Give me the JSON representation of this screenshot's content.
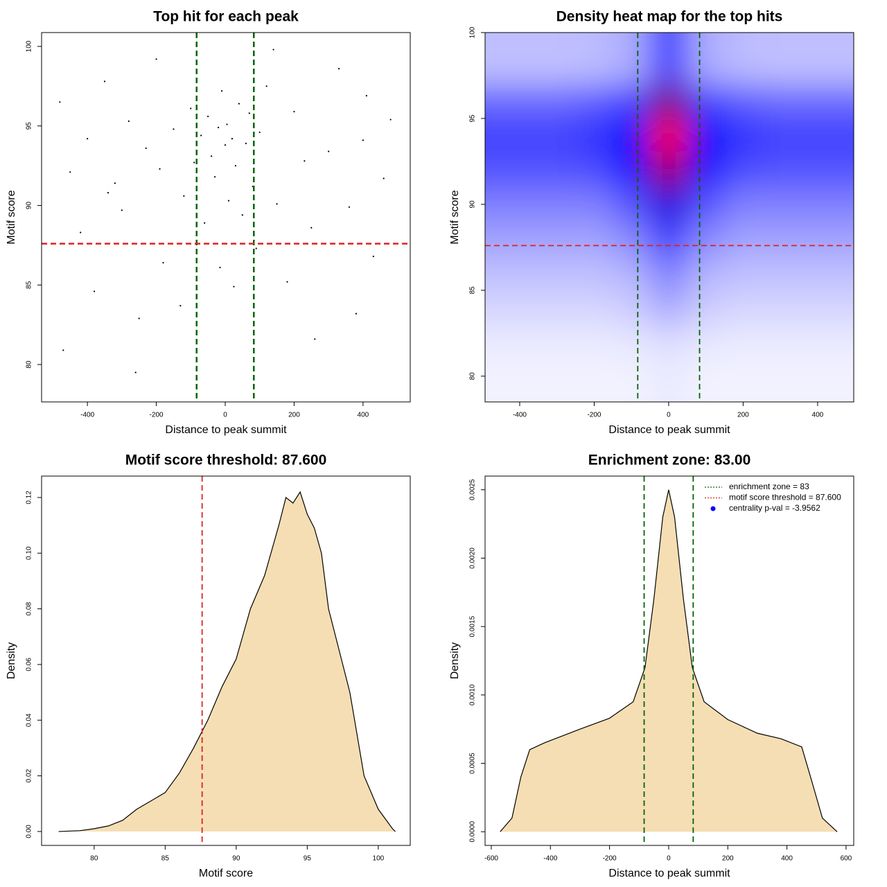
{
  "chart_data": [
    {
      "type": "scatter",
      "title": "Top hit for each peak",
      "x_label": "Distance to peak summit",
      "y_label": "Motif score",
      "x": [
        -480,
        -450,
        -420,
        -400,
        -380,
        -350,
        -320,
        -300,
        -280,
        -250,
        -230,
        -200,
        -180,
        -150,
        -120,
        -100,
        -90,
        -70,
        -60,
        -50,
        -40,
        -30,
        -20,
        -10,
        0,
        5,
        10,
        20,
        30,
        40,
        50,
        60,
        70,
        80,
        90,
        100,
        120,
        150,
        180,
        200,
        230,
        260,
        300,
        330,
        360,
        400,
        430,
        460,
        480,
        -470,
        -260,
        -130,
        -15,
        25,
        140,
        250,
        380,
        -340,
        -190,
        410
      ],
      "y": [
        96.5,
        92.1,
        88.3,
        94.2,
        84.6,
        97.8,
        91.4,
        89.7,
        95.3,
        82.9,
        93.6,
        99.2,
        86.4,
        94.8,
        90.6,
        96.1,
        92.7,
        94.4,
        88.9,
        95.6,
        93.1,
        91.8,
        94.9,
        97.2,
        93.8,
        95.1,
        90.3,
        94.2,
        92.5,
        96.4,
        89.4,
        93.9,
        95.8,
        91.2,
        87.3,
        94.6,
        97.5,
        90.1,
        85.2,
        95.9,
        92.8,
        81.6,
        93.4,
        98.6,
        89.9,
        94.1,
        86.8,
        91.7,
        95.4,
        80.9,
        79.5,
        83.7,
        86.1,
        84.9,
        99.8,
        88.6,
        83.2,
        90.8,
        92.3,
        96.9
      ],
      "color": "#000000",
      "xlim": [
        -533,
        537
      ],
      "ylim": [
        77.65,
        100.87
      ],
      "xticks": [
        -400,
        -200,
        0,
        200,
        400
      ],
      "yticks": [
        80,
        85,
        90,
        95,
        100
      ],
      "vlines": [
        -83,
        83
      ],
      "vline_color": "#006400",
      "hline": 87.6,
      "hline_color": "#dd2222"
    },
    {
      "type": "heatmap",
      "title": "Density heat map for the top hits",
      "x_label": "Distance to peak summit",
      "y_label": "Motif score",
      "x": [
        -400,
        -300,
        -200,
        -100,
        0,
        100,
        200,
        300,
        400
      ],
      "y": [
        80,
        82,
        84,
        86,
        88,
        90,
        92,
        94,
        96,
        98
      ],
      "values": [
        [
          0.03,
          0.03,
          0.03,
          0.03,
          0.05,
          0.03,
          0.03,
          0.03,
          0.03
        ],
        [
          0.05,
          0.05,
          0.05,
          0.06,
          0.08,
          0.06,
          0.05,
          0.05,
          0.05
        ],
        [
          0.1,
          0.1,
          0.1,
          0.12,
          0.2,
          0.12,
          0.1,
          0.1,
          0.1
        ],
        [
          0.15,
          0.15,
          0.15,
          0.18,
          0.3,
          0.18,
          0.15,
          0.15,
          0.15
        ],
        [
          0.22,
          0.22,
          0.22,
          0.28,
          0.45,
          0.28,
          0.22,
          0.22,
          0.22
        ],
        [
          0.3,
          0.3,
          0.3,
          0.4,
          0.65,
          0.4,
          0.3,
          0.3,
          0.3
        ],
        [
          0.4,
          0.4,
          0.42,
          0.55,
          0.85,
          0.55,
          0.42,
          0.4,
          0.4
        ],
        [
          0.45,
          0.45,
          0.48,
          0.6,
          1.0,
          0.6,
          0.48,
          0.45,
          0.45
        ],
        [
          0.35,
          0.35,
          0.38,
          0.45,
          0.8,
          0.45,
          0.38,
          0.35,
          0.35
        ],
        [
          0.15,
          0.15,
          0.16,
          0.2,
          0.45,
          0.2,
          0.16,
          0.15,
          0.15
        ]
      ],
      "colors": [
        "#ffffff",
        "#0000ff",
        "#ff0000"
      ],
      "xlim": [
        -493,
        497
      ],
      "ylim": [
        78.5,
        100
      ],
      "xticks": [
        -400,
        -200,
        0,
        200,
        400
      ],
      "yticks": [
        80,
        85,
        90,
        95,
        100
      ],
      "vlines": [
        -83,
        83
      ],
      "vline_color": "#006400",
      "hline": 87.6,
      "hline_color": "#dd2222"
    },
    {
      "type": "area",
      "title": "Motif score threshold: 87.600",
      "x_label": "Motif score",
      "y_label": "Density",
      "x": [
        77.5,
        79,
        80,
        81,
        82,
        83,
        84,
        85,
        86,
        87,
        88,
        89,
        90,
        91,
        92,
        93,
        93.5,
        94,
        94.5,
        95,
        95.5,
        96,
        96.5,
        97,
        98,
        99,
        100,
        101,
        101.2
      ],
      "values": [
        0,
        0.0003,
        0.001,
        0.002,
        0.004,
        0.008,
        0.011,
        0.014,
        0.021,
        0.03,
        0.04,
        0.052,
        0.062,
        0.08,
        0.092,
        0.11,
        0.12,
        0.118,
        0.122,
        0.114,
        0.109,
        0.1,
        0.08,
        0.07,
        0.05,
        0.02,
        0.008,
        0.001,
        0
      ],
      "color": "#f5deb3",
      "xlim": [
        76.3,
        102.25
      ],
      "ylim": [
        -0.005,
        0.1277
      ],
      "xticks": [
        80,
        85,
        90,
        95,
        100
      ],
      "yticks": [
        {
          "value": 0,
          "label": "0.00"
        },
        {
          "value": 0.02,
          "label": "0.02"
        },
        {
          "value": 0.04,
          "label": "0.04"
        },
        {
          "value": 0.06,
          "label": "0.06"
        },
        {
          "value": 0.08,
          "label": "0.08"
        },
        {
          "value": 0.1,
          "label": "0.10"
        },
        {
          "value": 0.12,
          "label": "0.12"
        }
      ],
      "vlines": [
        87.6
      ],
      "vline_color": "#dd2222"
    },
    {
      "type": "area",
      "title": "Enrichment zone: 83.00",
      "x_label": "Distance to peak summit",
      "y_label": "Density",
      "x": [
        -570,
        -530,
        -500,
        -470,
        -420,
        -300,
        -200,
        -120,
        -80,
        -50,
        -20,
        0,
        20,
        50,
        80,
        120,
        200,
        300,
        380,
        450,
        480,
        520,
        570
      ],
      "values": [
        0,
        0.0001,
        0.0004,
        0.0006,
        0.00065,
        0.00075,
        0.00083,
        0.00095,
        0.0012,
        0.0017,
        0.0023,
        0.0025,
        0.0023,
        0.0017,
        0.0012,
        0.00095,
        0.00082,
        0.00072,
        0.00068,
        0.00062,
        0.0004,
        0.0001,
        0
      ],
      "color": "#f5deb3",
      "xlim": [
        -621,
        626
      ],
      "ylim": [
        -0.0001,
        0.0026
      ],
      "xticks": [
        -600,
        -400,
        -200,
        0,
        200,
        400,
        600
      ],
      "yticks": [
        {
          "value": 0,
          "label": "0.0000"
        },
        {
          "value": 0.0005,
          "label": "0.0005"
        },
        {
          "value": 0.001,
          "label": "0.0010"
        },
        {
          "value": 0.0015,
          "label": "0.0015"
        },
        {
          "value": 0.002,
          "label": "0.0020"
        },
        {
          "value": 0.0025,
          "label": "0.0025"
        }
      ],
      "vlines": [
        -83,
        83
      ],
      "vline_color": "#006400",
      "legend_position": "top-right",
      "legend": [
        {
          "label": "enrichment zone = 83",
          "color": "#006400",
          "style": "dotted"
        },
        {
          "label": "motif score threshold = 87.600",
          "color": "#dd2222",
          "style": "dotted"
        },
        {
          "label": "centrality p-val = -3.9562",
          "color": "#0000ff",
          "style": "dot"
        }
      ]
    }
  ]
}
